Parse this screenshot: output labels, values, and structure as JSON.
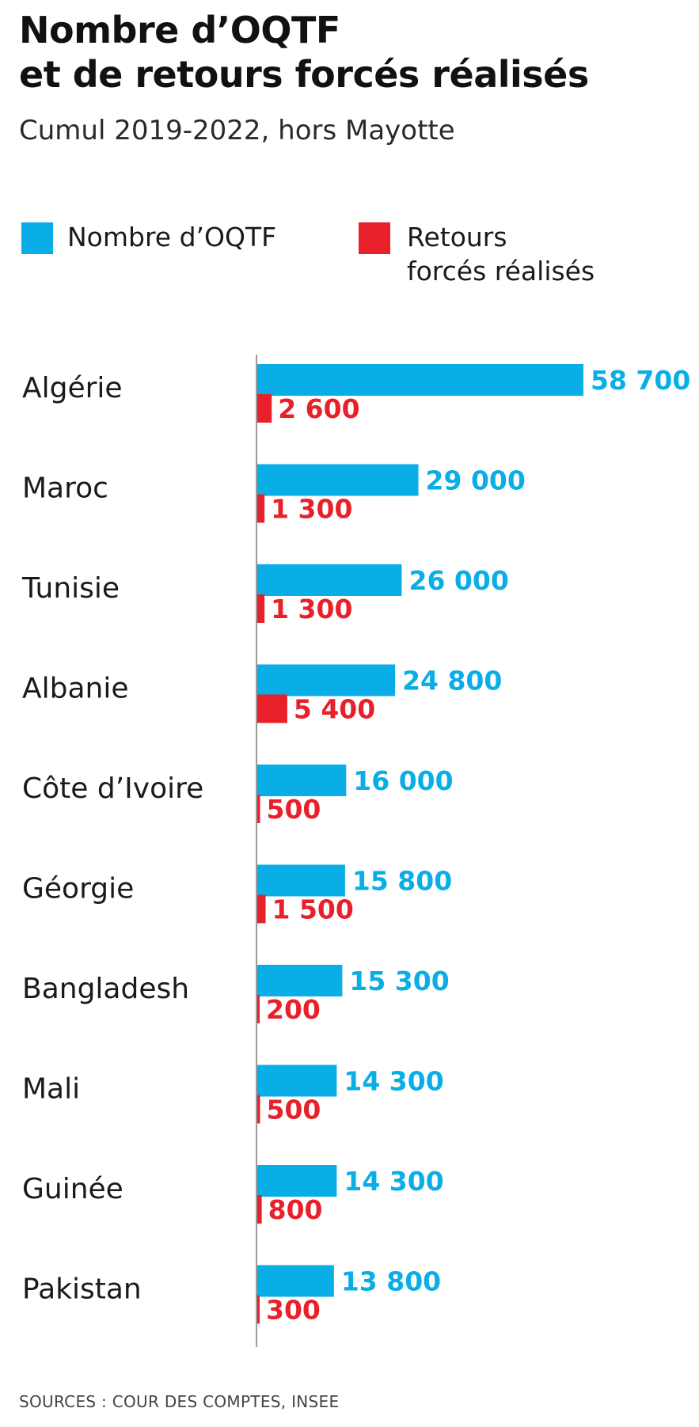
{
  "title_lines": [
    "Nombre d’OQTF",
    "et de retours forcés réalisés"
  ],
  "subtitle": "Cumul 2019-2022, hors Mayotte",
  "legend": [
    {
      "label_lines": [
        "Nombre d’OQTF"
      ],
      "color": "#0aaee6"
    },
    {
      "label_lines": [
        "Retours",
        "forcés réalisés"
      ],
      "color": "#e8202a"
    }
  ],
  "source": "SOURCES : COUR DES COMPTES, INSEE",
  "chart_data": {
    "type": "bar",
    "orientation": "horizontal",
    "categories": [
      "Algérie",
      "Maroc",
      "Tunisie",
      "Albanie",
      "Côte d’Ivoire",
      "Géorgie",
      "Bangladesh",
      "Mali",
      "Guinée",
      "Pakistan"
    ],
    "series": [
      {
        "name": "Nombre d’OQTF",
        "color": "#0aaee6",
        "values": [
          58700,
          29000,
          26000,
          24800,
          16000,
          15800,
          15300,
          14300,
          14300,
          13800
        ],
        "value_labels": [
          "58 700",
          "29 000",
          "26 000",
          "24 800",
          "16 000",
          "15 800",
          "15 300",
          "14 300",
          "14 300",
          "13 800"
        ]
      },
      {
        "name": "Retours forcés réalisés",
        "color": "#e8202a",
        "values": [
          2600,
          1300,
          1300,
          5400,
          500,
          1500,
          200,
          500,
          800,
          300
        ],
        "value_labels": [
          "2 600",
          "1 300",
          "1 300",
          "5 400",
          "500",
          "1 500",
          "200",
          "500",
          "800",
          "300"
        ]
      }
    ],
    "xlim": [
      0,
      58700
    ],
    "grid": false,
    "legend_position": "top-left"
  }
}
